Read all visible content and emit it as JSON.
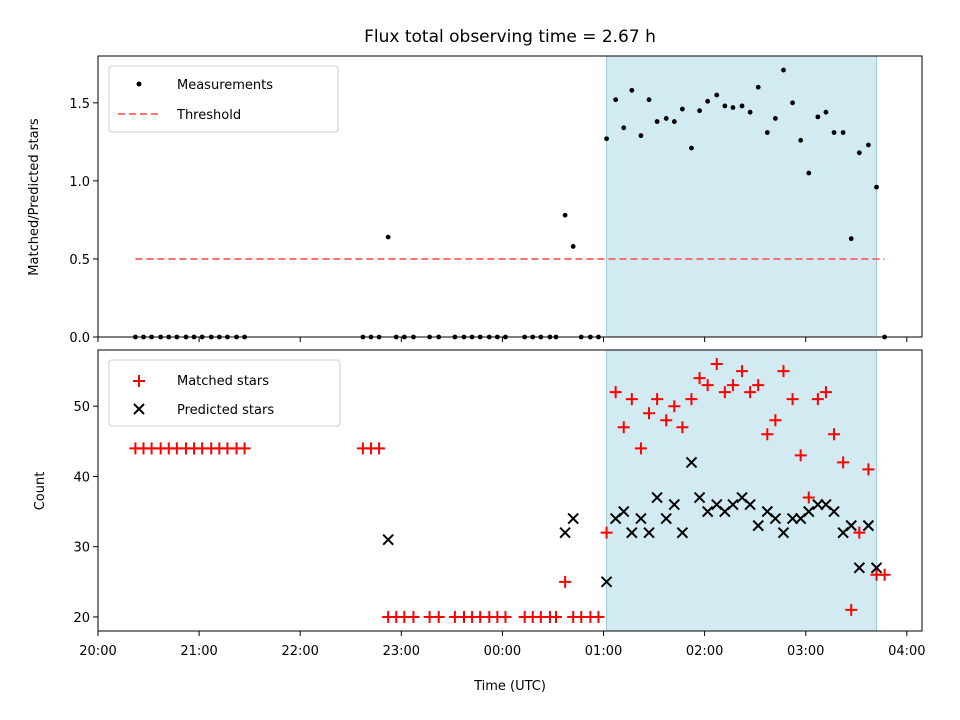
{
  "title": "Flux total observing time = 2.67 h",
  "colors": {
    "shade": "#add8e6",
    "measurement": "#000000",
    "threshold": "#ff7070",
    "matched": "#ff0000",
    "predicted": "#000000"
  },
  "chart_data": [
    {
      "type": "scatter",
      "panel": "top",
      "ylabel": "Matched/Predicted stars",
      "xlabel": "",
      "xlim": [
        20.0,
        4.15
      ],
      "ylim": [
        0.0,
        1.8
      ],
      "yticks": [
        0.0,
        0.5,
        1.0,
        1.5
      ],
      "ytick_labels": [
        "0.0",
        "0.5",
        "1.0",
        "1.5"
      ],
      "shaded_interval": [
        1.03,
        3.7
      ],
      "legend": {
        "position": "top-left",
        "entries": [
          "Measurements",
          "Threshold"
        ]
      },
      "threshold": {
        "name": "Threshold",
        "value": 0.5,
        "x": [
          20.37,
          3.78
        ]
      },
      "series": [
        {
          "name": "Measurements",
          "x": [
            20.37,
            20.45,
            20.53,
            20.62,
            20.7,
            20.78,
            20.87,
            20.95,
            21.03,
            21.12,
            21.2,
            21.28,
            21.37,
            21.45,
            22.62,
            22.7,
            22.78,
            22.87,
            22.95,
            23.03,
            23.12,
            23.28,
            23.37,
            23.53,
            23.62,
            23.7,
            23.78,
            23.87,
            23.95,
            24.03,
            24.22,
            24.3,
            24.38,
            24.47,
            24.53,
            24.62,
            24.7,
            24.78,
            24.87,
            24.95,
            25.03,
            25.12,
            25.2,
            25.28,
            25.37,
            25.45,
            25.53,
            25.62,
            25.7,
            25.78,
            25.87,
            25.95,
            26.03,
            26.12,
            26.2,
            26.28,
            26.37,
            26.45,
            26.53,
            26.62,
            26.7,
            26.78,
            26.87,
            26.95,
            27.03,
            27.12,
            27.2,
            27.28,
            27.37,
            27.45,
            27.53,
            27.62,
            27.7,
            27.78
          ],
          "y": [
            0,
            0,
            0,
            0,
            0,
            0,
            0,
            0,
            0,
            0,
            0,
            0,
            0,
            0,
            0,
            0,
            0,
            0.64,
            0,
            0,
            0,
            0,
            0,
            0,
            0,
            0,
            0,
            0,
            0,
            0,
            0,
            0,
            0,
            0,
            0,
            0.78,
            0.58,
            0,
            0,
            0,
            1.27,
            1.52,
            1.34,
            1.58,
            1.29,
            1.52,
            1.38,
            1.4,
            1.38,
            1.46,
            1.21,
            1.45,
            1.51,
            1.55,
            1.48,
            1.47,
            1.48,
            1.44,
            1.6,
            1.31,
            1.4,
            1.71,
            1.5,
            1.26,
            1.05,
            1.41,
            1.44,
            1.31,
            1.31,
            0.63,
            1.18,
            1.23,
            0.96,
            0
          ]
        }
      ]
    },
    {
      "type": "scatter",
      "panel": "bottom",
      "ylabel": "Count",
      "xlabel": "Time (UTC)",
      "xlim": [
        20.0,
        4.15
      ],
      "ylim": [
        18,
        58
      ],
      "yticks": [
        20,
        30,
        40,
        50
      ],
      "ytick_labels": [
        "20",
        "30",
        "40",
        "50"
      ],
      "xticks": [
        20,
        21,
        22,
        23,
        0,
        1,
        2,
        3,
        4
      ],
      "xtick_labels": [
        "20:00",
        "21:00",
        "22:00",
        "23:00",
        "00:00",
        "01:00",
        "02:00",
        "03:00",
        "04:00"
      ],
      "shaded_interval": [
        1.03,
        3.7
      ],
      "legend": {
        "position": "top-left",
        "entries": [
          "Matched stars",
          "Predicted stars"
        ]
      },
      "series": [
        {
          "name": "Matched stars",
          "marker": "plus",
          "x": [
            20.37,
            20.45,
            20.53,
            20.62,
            20.7,
            20.78,
            20.87,
            20.95,
            21.03,
            21.12,
            21.2,
            21.28,
            21.37,
            21.45,
            22.62,
            22.7,
            22.78,
            22.87,
            22.95,
            23.03,
            23.12,
            23.28,
            23.37,
            23.53,
            23.62,
            23.7,
            23.78,
            23.87,
            23.95,
            24.03,
            24.22,
            24.3,
            24.38,
            24.47,
            24.53,
            24.62,
            24.7,
            24.78,
            24.87,
            24.95,
            25.03,
            25.12,
            25.2,
            25.28,
            25.37,
            25.45,
            25.53,
            25.62,
            25.7,
            25.78,
            25.87,
            25.95,
            26.03,
            26.12,
            26.2,
            26.28,
            26.37,
            26.45,
            26.53,
            26.62,
            26.7,
            26.78,
            26.87,
            26.95,
            27.03,
            27.12,
            27.2,
            27.28,
            27.37,
            27.45,
            27.53,
            27.62,
            27.7,
            27.78
          ],
          "y": [
            44,
            44,
            44,
            44,
            44,
            44,
            44,
            44,
            44,
            44,
            44,
            44,
            44,
            44,
            44,
            44,
            44,
            20,
            20,
            20,
            20,
            20,
            20,
            20,
            20,
            20,
            20,
            20,
            20,
            20,
            20,
            20,
            20,
            20,
            20,
            25,
            20,
            20,
            20,
            20,
            32,
            52,
            47,
            51,
            44,
            49,
            51,
            48,
            50,
            47,
            51,
            54,
            53,
            56,
            52,
            53,
            55,
            52,
            53,
            46,
            48,
            55,
            51,
            43,
            37,
            51,
            52,
            46,
            42,
            21,
            32,
            41,
            26,
            26
          ]
        },
        {
          "name": "Predicted stars",
          "marker": "x",
          "x": [
            22.87,
            24.62,
            24.7,
            25.03,
            25.12,
            25.2,
            25.28,
            25.37,
            25.45,
            25.53,
            25.62,
            25.7,
            25.78,
            25.87,
            25.95,
            26.03,
            26.12,
            26.2,
            26.28,
            26.37,
            26.45,
            26.53,
            26.62,
            26.7,
            26.78,
            26.87,
            26.95,
            27.03,
            27.12,
            27.2,
            27.28,
            27.37,
            27.45,
            27.53,
            27.62,
            27.7
          ],
          "y": [
            31,
            32,
            34,
            25,
            34,
            35,
            32,
            34,
            32,
            37,
            34,
            36,
            32,
            42,
            37,
            35,
            36,
            35,
            36,
            37,
            36,
            33,
            35,
            34,
            32,
            34,
            34,
            35,
            36,
            36,
            35,
            32,
            33,
            27,
            33,
            27
          ]
        }
      ]
    }
  ]
}
